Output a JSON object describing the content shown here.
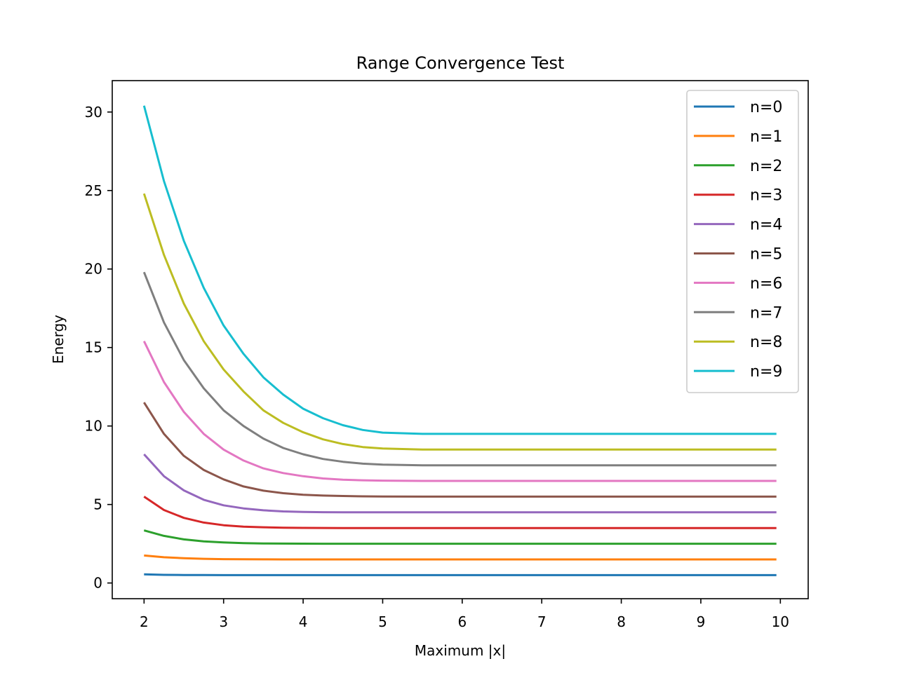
{
  "chart_data": {
    "type": "line",
    "title": "Range Convergence Test",
    "xlabel": "Maximum |x|",
    "ylabel": "Energy",
    "xlim": [
      1.6,
      10.35
    ],
    "ylim": [
      -1.0,
      32.0
    ],
    "xticks": [
      2,
      3,
      4,
      5,
      6,
      7,
      8,
      9,
      10
    ],
    "yticks": [
      0,
      5,
      10,
      15,
      20,
      25,
      30
    ],
    "xtick_labels": [
      "2",
      "3",
      "4",
      "5",
      "6",
      "7",
      "8",
      "9",
      "10"
    ],
    "ytick_labels": [
      "0",
      "5",
      "10",
      "15",
      "20",
      "25",
      "30"
    ],
    "grid": false,
    "legend_position": "top-right",
    "x": [
      2.0,
      2.25,
      2.5,
      2.75,
      3.0,
      3.25,
      3.5,
      3.75,
      4.0,
      4.25,
      4.5,
      4.75,
      5.0,
      5.5,
      6.0,
      6.5,
      7.0,
      7.5,
      8.0,
      8.5,
      9.0,
      9.5,
      9.95
    ],
    "series": [
      {
        "name": "n=0",
        "color": "#1f77b4",
        "values": [
          0.55,
          0.52,
          0.51,
          0.505,
          0.5,
          0.5,
          0.5,
          0.5,
          0.5,
          0.5,
          0.5,
          0.5,
          0.5,
          0.5,
          0.5,
          0.5,
          0.5,
          0.5,
          0.5,
          0.5,
          0.5,
          0.5,
          0.5
        ]
      },
      {
        "name": "n=1",
        "color": "#ff7f0e",
        "values": [
          1.75,
          1.64,
          1.58,
          1.54,
          1.52,
          1.51,
          1.505,
          1.5,
          1.5,
          1.5,
          1.5,
          1.5,
          1.5,
          1.5,
          1.5,
          1.5,
          1.5,
          1.5,
          1.5,
          1.5,
          1.5,
          1.5,
          1.5
        ]
      },
      {
        "name": "n=2",
        "color": "#2ca02c",
        "values": [
          3.35,
          3.0,
          2.78,
          2.65,
          2.58,
          2.54,
          2.52,
          2.51,
          2.505,
          2.5,
          2.5,
          2.5,
          2.5,
          2.5,
          2.5,
          2.5,
          2.5,
          2.5,
          2.5,
          2.5,
          2.5,
          2.5,
          2.5
        ]
      },
      {
        "name": "n=3",
        "color": "#d62728",
        "values": [
          5.5,
          4.65,
          4.15,
          3.85,
          3.68,
          3.59,
          3.55,
          3.52,
          3.51,
          3.505,
          3.5,
          3.5,
          3.5,
          3.5,
          3.5,
          3.5,
          3.5,
          3.5,
          3.5,
          3.5,
          3.5,
          3.5,
          3.5
        ]
      },
      {
        "name": "n=4",
        "color": "#9467bd",
        "values": [
          8.2,
          6.8,
          5.9,
          5.3,
          4.95,
          4.75,
          4.63,
          4.56,
          4.53,
          4.51,
          4.505,
          4.5,
          4.5,
          4.5,
          4.5,
          4.5,
          4.5,
          4.5,
          4.5,
          4.5,
          4.5,
          4.5,
          4.5
        ]
      },
      {
        "name": "n=5",
        "color": "#8c564b",
        "values": [
          11.5,
          9.5,
          8.1,
          7.2,
          6.6,
          6.15,
          5.88,
          5.72,
          5.62,
          5.57,
          5.54,
          5.52,
          5.51,
          5.5,
          5.5,
          5.5,
          5.5,
          5.5,
          5.5,
          5.5,
          5.5,
          5.5,
          5.5
        ]
      },
      {
        "name": "n=6",
        "color": "#e377c2",
        "values": [
          15.4,
          12.8,
          10.9,
          9.5,
          8.5,
          7.8,
          7.3,
          7.0,
          6.8,
          6.66,
          6.58,
          6.54,
          6.52,
          6.5,
          6.5,
          6.5,
          6.5,
          6.5,
          6.5,
          6.5,
          6.5,
          6.5,
          6.5
        ]
      },
      {
        "name": "n=7",
        "color": "#7f7f7f",
        "values": [
          19.8,
          16.6,
          14.2,
          12.4,
          11.0,
          10.0,
          9.2,
          8.6,
          8.2,
          7.9,
          7.72,
          7.6,
          7.54,
          7.5,
          7.5,
          7.5,
          7.5,
          7.5,
          7.5,
          7.5,
          7.5,
          7.5,
          7.5
        ]
      },
      {
        "name": "n=8",
        "color": "#bcbd22",
        "values": [
          24.8,
          20.9,
          17.8,
          15.4,
          13.6,
          12.2,
          11.0,
          10.2,
          9.6,
          9.15,
          8.85,
          8.66,
          8.57,
          8.5,
          8.5,
          8.5,
          8.5,
          8.5,
          8.5,
          8.5,
          8.5,
          8.5,
          8.5
        ]
      },
      {
        "name": "n=9",
        "color": "#17becf",
        "values": [
          30.4,
          25.6,
          21.8,
          18.8,
          16.4,
          14.6,
          13.1,
          12.0,
          11.1,
          10.5,
          10.05,
          9.75,
          9.58,
          9.5,
          9.5,
          9.5,
          9.5,
          9.5,
          9.5,
          9.5,
          9.5,
          9.5,
          9.5
        ]
      }
    ]
  }
}
